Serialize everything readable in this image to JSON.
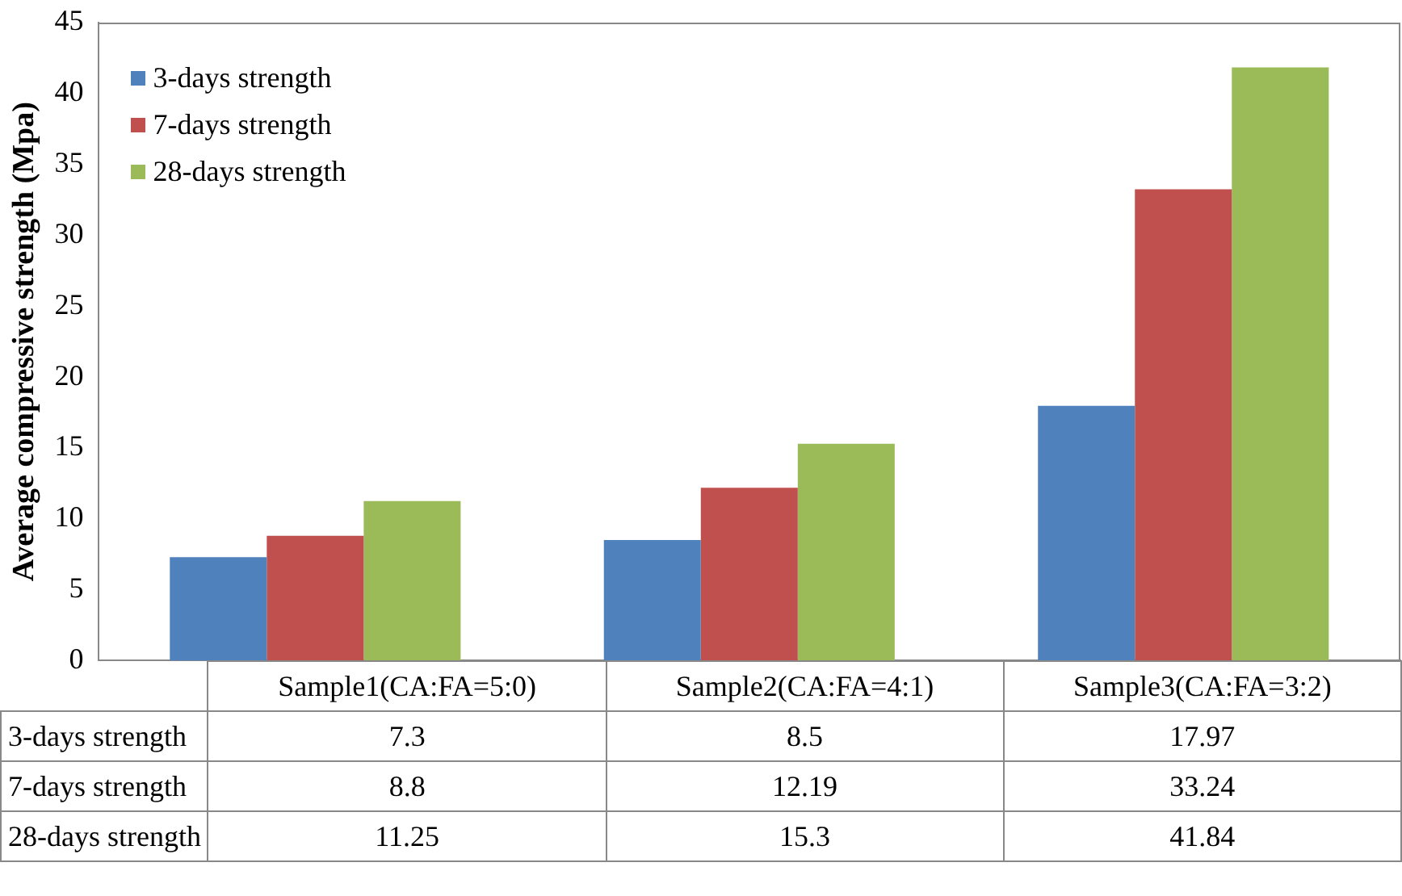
{
  "chart_data": {
    "type": "bar",
    "ylabel": "Average compressive strength (Mpa)",
    "categories": [
      "Sample1(CA:FA=5:0)",
      "Sample2(CA:FA=4:1)",
      "Sample3(CA:FA=3:2)"
    ],
    "series": [
      {
        "name": "3-days strength",
        "color": "#4f81bd",
        "values": [
          7.3,
          8.5,
          17.97
        ]
      },
      {
        "name": "7-days strength",
        "color": "#c0504d",
        "values": [
          8.8,
          12.19,
          33.24
        ]
      },
      {
        "name": "28-days strength",
        "color": "#9bbb59",
        "values": [
          11.25,
          15.3,
          41.84
        ]
      }
    ],
    "ylim": [
      0,
      45
    ],
    "yticks": [
      0,
      5,
      10,
      15,
      20,
      25,
      30,
      35,
      40,
      45
    ],
    "grid": false,
    "legend": "top left",
    "data_labels": true
  }
}
